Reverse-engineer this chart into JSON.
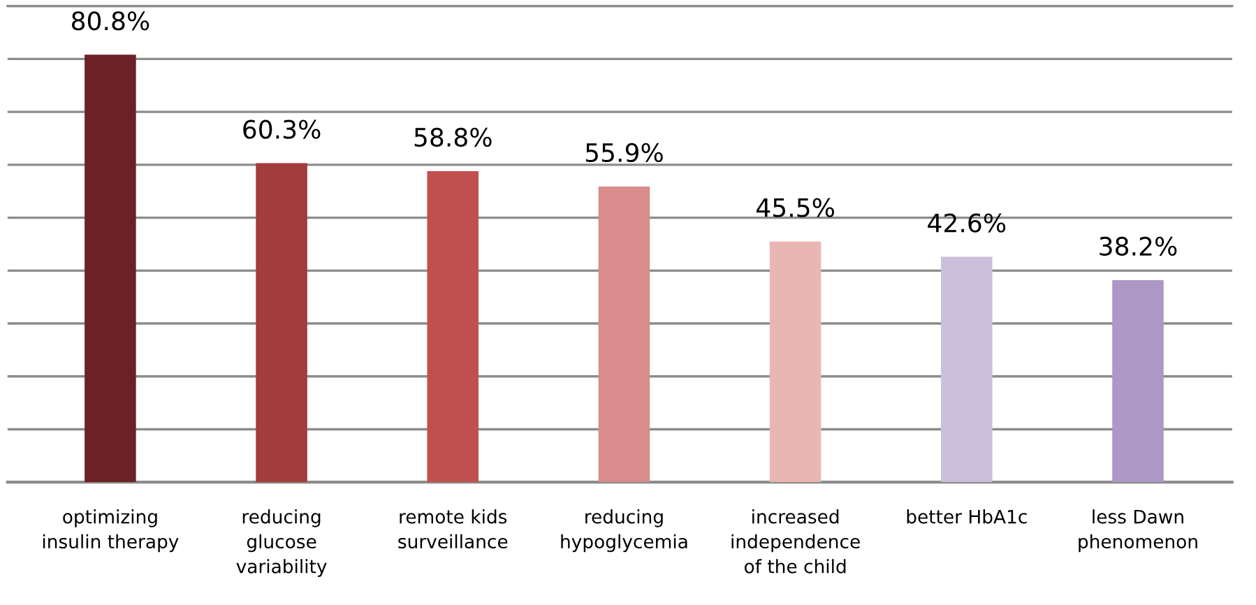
{
  "chart_data": {
    "type": "bar",
    "categories": [
      "optimizing\ninsulin therapy",
      "reducing\nglucose\nvariability",
      "remote kids\nsurveillance",
      "reducing\nhypoglycemia",
      "increased\nindependence\nof the child",
      "better HbA1c",
      "less Dawn\nphenomenon"
    ],
    "values": [
      80.8,
      60.3,
      58.8,
      55.9,
      45.5,
      42.6,
      38.2
    ],
    "value_labels": [
      "80.8%",
      "60.3%",
      "58.8%",
      "55.9%",
      "45.5%",
      "42.6%",
      "38.2%"
    ],
    "colors": [
      "#6b2226",
      "#a33c3c",
      "#c0504d",
      "#d98c8c",
      "#eab6b4",
      "#cbc0dc",
      "#ac97c6"
    ],
    "ylim": [
      0,
      90
    ],
    "yticks": [
      {
        "value": 10,
        "label": null
      },
      {
        "value": 20,
        "label": null
      },
      {
        "value": 30,
        "label": null
      },
      {
        "value": 40,
        "label": null
      },
      {
        "value": 50,
        "label": null
      },
      {
        "value": 60,
        "label": null
      },
      {
        "value": 70,
        "label": null
      },
      {
        "value": 80,
        "label": null
      },
      {
        "value": 90,
        "label": null
      }
    ],
    "grid": "y",
    "tick_labels": "x"
  }
}
